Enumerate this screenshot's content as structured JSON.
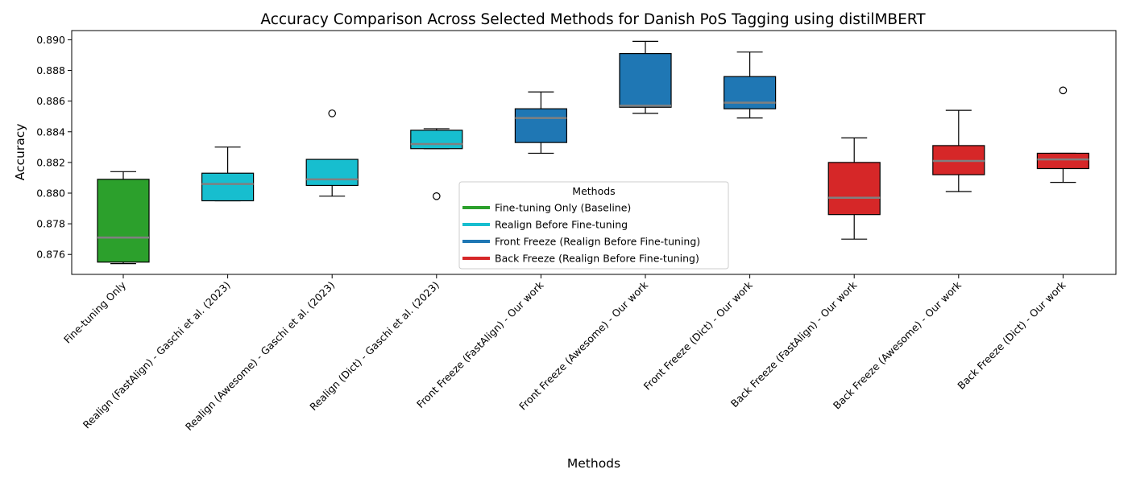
{
  "chart_data": {
    "type": "box",
    "title": "Accuracy Comparison Across Selected Methods for Danish PoS Tagging using distilMBERT",
    "xlabel": "Methods",
    "ylabel": "Accuracy",
    "ylim": [
      0.8747,
      0.8906
    ],
    "yticks": [
      "0.876",
      "0.878",
      "0.880",
      "0.882",
      "0.884",
      "0.886",
      "0.888",
      "0.890"
    ],
    "ytick_values": [
      0.876,
      0.878,
      0.88,
      0.882,
      0.884,
      0.886,
      0.888,
      0.89
    ],
    "grid": false,
    "legend": {
      "title": "Methods",
      "position": "lower-center",
      "entries": [
        {
          "label": "Fine-tuning Only (Baseline)",
          "color": "#2ca02c"
        },
        {
          "label": "Realign Before Fine-tuning",
          "color": "#17becf"
        },
        {
          "label": "Front Freeze (Realign Before Fine-tuning)",
          "color": "#1f77b4"
        },
        {
          "label": "Back Freeze (Realign Before Fine-tuning)",
          "color": "#d62728"
        }
      ]
    },
    "median_color": "#808080",
    "categories": [
      "Fine-tuning Only",
      "Realign (FastAlign) - Gaschi et al. (2023)",
      "Realign (Awesome) - Gaschi et al. (2023)",
      "Realign (Dict) - Gaschi et al. (2023)",
      "Front Freeze (FastAlign) - Our work",
      "Front Freeze (Awesome) - Our work",
      "Front Freeze (Dict) - Our work",
      "Back Freeze (FastAlign) - Our work",
      "Back Freeze (Awesome) - Our work",
      "Back Freeze (Dict) - Our work"
    ],
    "boxes": [
      {
        "whislo": 0.8754,
        "q1": 0.8755,
        "med": 0.8771,
        "q3": 0.8809,
        "whishi": 0.8814,
        "fliers": [],
        "color": "#2ca02c"
      },
      {
        "whislo": 0.8795,
        "q1": 0.8795,
        "med": 0.8806,
        "q3": 0.8813,
        "whishi": 0.883,
        "fliers": [],
        "color": "#17becf"
      },
      {
        "whislo": 0.8798,
        "q1": 0.8805,
        "med": 0.8809,
        "q3": 0.8822,
        "whishi": 0.8822,
        "fliers": [
          0.8852
        ],
        "color": "#17becf"
      },
      {
        "whislo": 0.8829,
        "q1": 0.8829,
        "med": 0.8832,
        "q3": 0.8841,
        "whishi": 0.8842,
        "fliers": [
          0.8798
        ],
        "color": "#17becf"
      },
      {
        "whislo": 0.8826,
        "q1": 0.8833,
        "med": 0.8849,
        "q3": 0.8855,
        "whishi": 0.8866,
        "fliers": [],
        "color": "#1f77b4"
      },
      {
        "whislo": 0.8852,
        "q1": 0.8856,
        "med": 0.8857,
        "q3": 0.8891,
        "whishi": 0.8899,
        "fliers": [],
        "color": "#1f77b4"
      },
      {
        "whislo": 0.8849,
        "q1": 0.8855,
        "med": 0.8859,
        "q3": 0.8876,
        "whishi": 0.8892,
        "fliers": [],
        "color": "#1f77b4"
      },
      {
        "whislo": 0.877,
        "q1": 0.8786,
        "med": 0.8797,
        "q3": 0.882,
        "whishi": 0.8836,
        "fliers": [],
        "color": "#d62728"
      },
      {
        "whislo": 0.8801,
        "q1": 0.8812,
        "med": 0.8821,
        "q3": 0.8831,
        "whishi": 0.8854,
        "fliers": [],
        "color": "#d62728"
      },
      {
        "whislo": 0.8807,
        "q1": 0.8816,
        "med": 0.8822,
        "q3": 0.8826,
        "whishi": 0.8826,
        "fliers": [
          0.8867
        ],
        "color": "#d62728"
      }
    ]
  }
}
